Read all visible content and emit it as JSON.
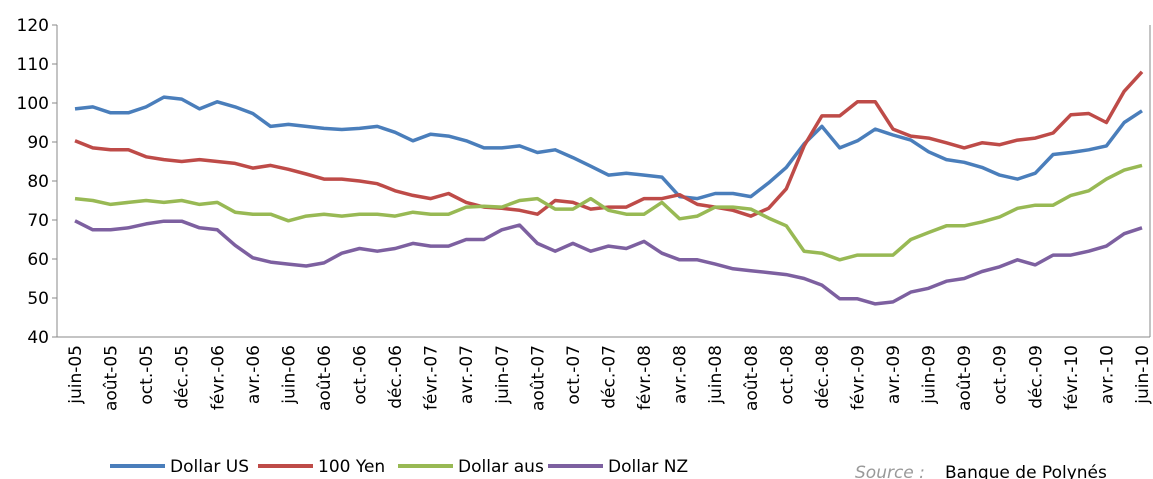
{
  "chart_data": {
    "type": "line",
    "categories": [
      "juin-05",
      null,
      "août-05",
      null,
      "oct.-05",
      null,
      "déc.-05",
      null,
      "févr.-06",
      null,
      "avr.-06",
      null,
      "juin-06",
      null,
      "août-06",
      null,
      "oct.-06",
      null,
      "déc.-06",
      null,
      "févr.-07",
      null,
      "avr.-07",
      null,
      "juin-07",
      null,
      "août-07",
      null,
      "oct.-07",
      null,
      "déc.-07",
      null,
      "févr.-08",
      null,
      "avr.-08",
      null,
      "juin-08",
      null,
      "août-08",
      null,
      "oct.-08",
      null,
      "déc.-08",
      null,
      "févr.-09",
      null,
      "avr.-09",
      null,
      "juin-09",
      null,
      "août-09",
      null,
      "oct.-09",
      null,
      "déc.-09",
      null,
      "févr.-10",
      null,
      "avr.-10",
      null,
      "juin-10"
    ],
    "series": [
      {
        "name": "Dollar US",
        "color": "#4a7ebb",
        "values": [
          98.5,
          99,
          97.5,
          97.5,
          99,
          101.5,
          101,
          98.5,
          100.3,
          99,
          97.3,
          94,
          94.5,
          94,
          93.5,
          93.2,
          93.5,
          94,
          92.5,
          90.3,
          92,
          91.5,
          90.3,
          88.5,
          88.5,
          89,
          87.3,
          88,
          86,
          83.8,
          81.5,
          82,
          81.5,
          81,
          76,
          75.5,
          76.8,
          76.8,
          76,
          79.5,
          83.5,
          89.5,
          94,
          88.5,
          90.3,
          93.3,
          91.8,
          90.5,
          87.5,
          85.5,
          84.8,
          83.5,
          81.5,
          80.5,
          82,
          86.8,
          87.3,
          88,
          89,
          95,
          98
        ]
      },
      {
        "name": "100 Yen",
        "color": "#be4b48",
        "values": [
          90.3,
          88.5,
          88,
          88,
          86.2,
          85.5,
          85,
          85.5,
          85,
          84.5,
          83.3,
          84,
          83,
          81.8,
          80.5,
          80.5,
          80,
          79.3,
          77.5,
          76.3,
          75.5,
          76.8,
          74.5,
          73.3,
          73,
          72.5,
          71.5,
          75,
          74.5,
          72.8,
          73.3,
          73.3,
          75.5,
          75.5,
          76.5,
          74,
          73.3,
          72.5,
          71,
          73,
          78,
          89,
          96.7,
          96.7,
          100.3,
          100.3,
          93.3,
          91.5,
          91,
          89.8,
          88.5,
          89.8,
          89.3,
          90.5,
          91,
          92.3,
          97,
          97.3,
          95,
          103,
          108
        ]
      },
      {
        "name": "Dollar aus",
        "color": "#98b954",
        "values": [
          75.5,
          75,
          74,
          74.5,
          75,
          74.5,
          75,
          74,
          74.5,
          72,
          71.5,
          71.5,
          69.8,
          71,
          71.5,
          71,
          71.5,
          71.5,
          71,
          72,
          71.5,
          71.5,
          73.3,
          73.5,
          73.3,
          75,
          75.5,
          72.8,
          72.8,
          75.5,
          72.5,
          71.5,
          71.5,
          74.5,
          70.3,
          71,
          73.3,
          73.3,
          72.8,
          70.5,
          68.5,
          62,
          61.5,
          59.8,
          61,
          61,
          61,
          65,
          66.8,
          68.5,
          68.5,
          69.5,
          70.8,
          73,
          73.8,
          73.8,
          76.3,
          77.5,
          80.5,
          82.8,
          84
        ]
      },
      {
        "name": "Dollar NZ",
        "color": "#7d60a0",
        "values": [
          69.8,
          67.5,
          67.5,
          68,
          69,
          69.7,
          69.7,
          68,
          67.5,
          63.5,
          60.3,
          59.2,
          58.7,
          58.2,
          59,
          61.5,
          62.7,
          62,
          62.7,
          64,
          63.3,
          63.3,
          65,
          65,
          67.5,
          68.7,
          64,
          62,
          64,
          62,
          63.3,
          62.7,
          64.5,
          61.5,
          59.8,
          59.8,
          58.7,
          57.5,
          57,
          56.5,
          56,
          55,
          53.3,
          49.8,
          49.8,
          48.5,
          49,
          51.5,
          52.5,
          54.3,
          55,
          56.8,
          58,
          59.8,
          58.5,
          61,
          61,
          62,
          63.3,
          66.5,
          68
        ]
      }
    ],
    "ylim": [
      40,
      120
    ],
    "yticks": [
      40,
      50,
      60,
      70,
      80,
      90,
      100,
      110,
      120
    ],
    "legend": "bottom",
    "source_label": "Source :",
    "source_text": "Banque de Polynés"
  }
}
